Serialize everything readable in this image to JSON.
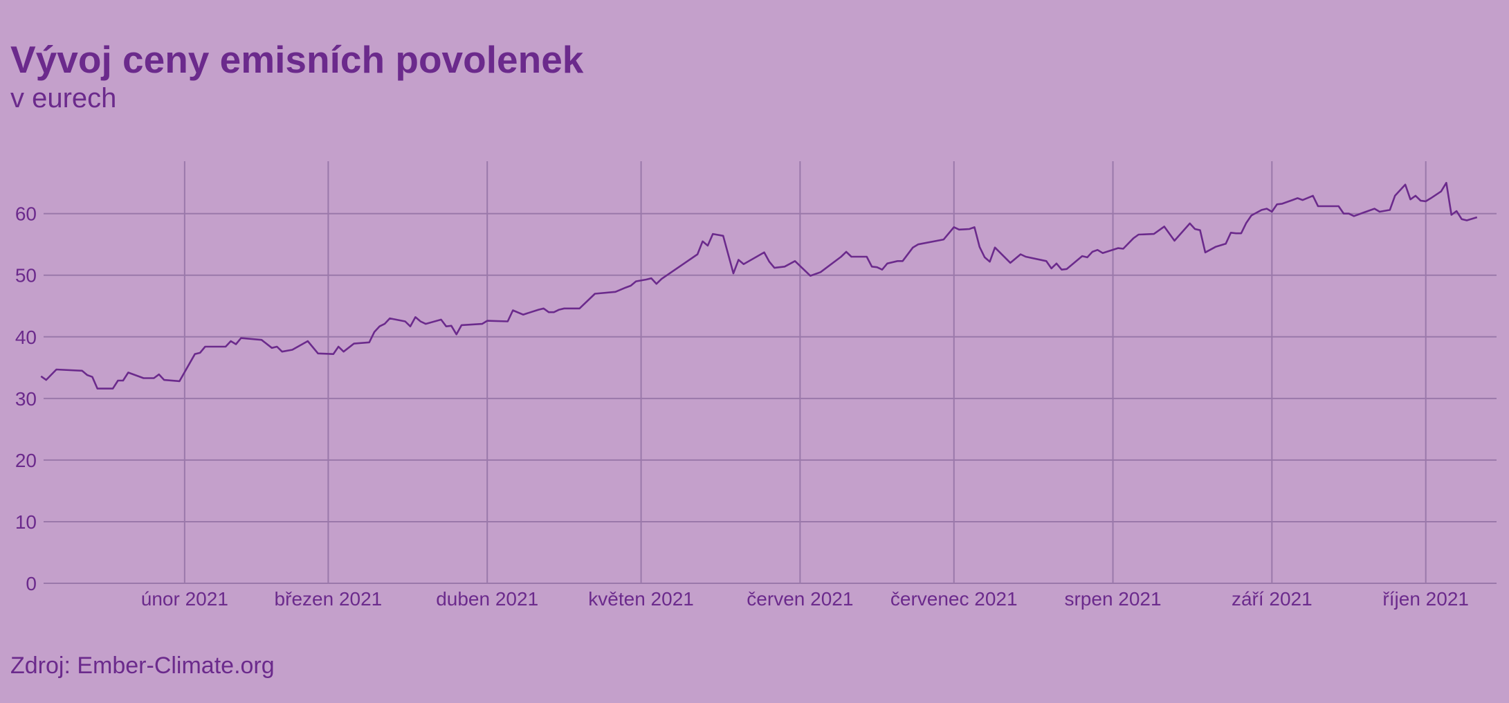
{
  "chart_data": {
    "type": "line",
    "title": "Vývoj ceny emisních povolenek",
    "subtitle": "v eurech",
    "source": "Zdroj: Ember-Climate.org",
    "xlim": [
      3.5,
      286.8
    ],
    "xticks": [
      {
        "value": 31,
        "label": "únor 2021"
      },
      {
        "value": 59,
        "label": "březen 2021"
      },
      {
        "value": 90,
        "label": "duben 2021"
      },
      {
        "value": 120,
        "label": "květen 2021"
      },
      {
        "value": 151,
        "label": "červen 2021"
      },
      {
        "value": 181,
        "label": "červenec 2021"
      },
      {
        "value": 212,
        "label": "srpen 2021"
      },
      {
        "value": 243,
        "label": "září 2021"
      },
      {
        "value": 273,
        "label": "říjen 2021"
      }
    ],
    "ylim": [
      0,
      68.5
    ],
    "yticks": [
      0,
      10,
      20,
      30,
      40,
      50,
      60
    ],
    "grid": true,
    "series": [
      {
        "color": "#6b2a8c",
        "x": [
          3,
          4,
          6,
          11,
          12,
          13,
          14,
          17,
          18,
          19,
          20,
          23,
          25,
          26,
          27,
          30,
          33,
          34,
          35,
          39,
          40,
          41,
          42,
          46,
          48,
          49,
          50,
          52,
          55,
          57,
          60,
          61,
          62,
          64,
          67,
          68,
          69,
          70,
          71,
          74,
          75,
          76,
          77,
          78,
          81,
          82,
          83,
          84,
          85,
          89,
          90,
          94,
          95,
          97,
          100,
          101,
          102,
          103,
          104,
          105,
          108,
          111,
          115,
          117,
          118,
          119,
          121,
          122,
          123,
          124,
          131,
          132,
          133,
          134,
          136,
          138,
          139,
          140,
          144,
          145,
          146,
          148,
          150,
          151,
          153,
          155,
          159,
          160,
          161,
          164,
          165,
          166,
          167,
          168,
          170,
          171,
          173,
          174,
          179,
          181,
          182,
          184,
          185,
          186,
          187,
          188,
          189,
          192,
          194,
          195,
          199,
          200,
          201,
          202,
          203,
          206,
          207,
          208,
          209,
          210,
          213,
          214,
          216,
          217,
          220,
          222,
          224,
          227,
          228,
          229,
          230,
          232,
          234,
          235,
          236,
          237,
          238,
          239,
          241,
          242,
          243,
          244,
          245,
          247,
          248,
          249,
          251,
          252,
          256,
          257,
          258,
          259,
          261,
          263,
          264,
          266,
          267,
          269,
          270,
          271,
          272,
          273,
          274,
          276,
          277,
          278,
          279,
          280,
          281,
          283
        ],
        "values": [
          33.6,
          33.0,
          34.7,
          34.5,
          33.8,
          33.5,
          31.6,
          31.6,
          32.9,
          32.9,
          34.2,
          33.3,
          33.3,
          33.9,
          33.0,
          32.8,
          37.2,
          37.4,
          38.4,
          38.4,
          39.3,
          38.8,
          39.8,
          39.5,
          38.2,
          38.4,
          37.6,
          37.9,
          39.3,
          37.3,
          37.2,
          38.4,
          37.6,
          38.9,
          39.1,
          40.8,
          41.7,
          42.1,
          43.0,
          42.5,
          41.7,
          43.2,
          42.5,
          42.1,
          42.8,
          41.7,
          41.8,
          40.4,
          41.9,
          42.1,
          42.6,
          42.5,
          44.3,
          43.6,
          44.4,
          44.6,
          44.0,
          44.0,
          44.4,
          44.6,
          44.6,
          47.0,
          47.3,
          48.0,
          48.3,
          49.0,
          49.3,
          49.5,
          48.6,
          49.4,
          53.4,
          55.5,
          54.8,
          56.7,
          56.4,
          50.3,
          52.5,
          51.8,
          53.7,
          52.2,
          51.2,
          51.4,
          52.3,
          51.5,
          49.9,
          50.5,
          53.0,
          53.8,
          53.0,
          53.0,
          51.4,
          51.3,
          50.9,
          51.9,
          52.3,
          52.3,
          54.5,
          55.0,
          55.8,
          57.8,
          57.4,
          57.5,
          57.8,
          54.6,
          52.9,
          52.2,
          54.5,
          52.0,
          53.4,
          53.0,
          52.3,
          51.1,
          51.9,
          50.9,
          51.0,
          53.1,
          52.9,
          53.8,
          54.1,
          53.6,
          54.4,
          54.3,
          56.0,
          56.6,
          56.7,
          57.9,
          55.6,
          58.4,
          57.5,
          57.3,
          53.7,
          54.6,
          55.1,
          56.9,
          56.8,
          56.8,
          58.5,
          59.7,
          60.6,
          60.8,
          60.3,
          61.5,
          61.6,
          62.2,
          62.5,
          62.2,
          62.9,
          61.2,
          61.2,
          60.0,
          60.0,
          59.6,
          60.2,
          60.8,
          60.3,
          60.6,
          62.9,
          64.7,
          62.3,
          62.9,
          62.1,
          62.0,
          62.5,
          63.6,
          65.0,
          59.8,
          60.4,
          59.1,
          58.9,
          59.4
        ]
      }
    ]
  }
}
